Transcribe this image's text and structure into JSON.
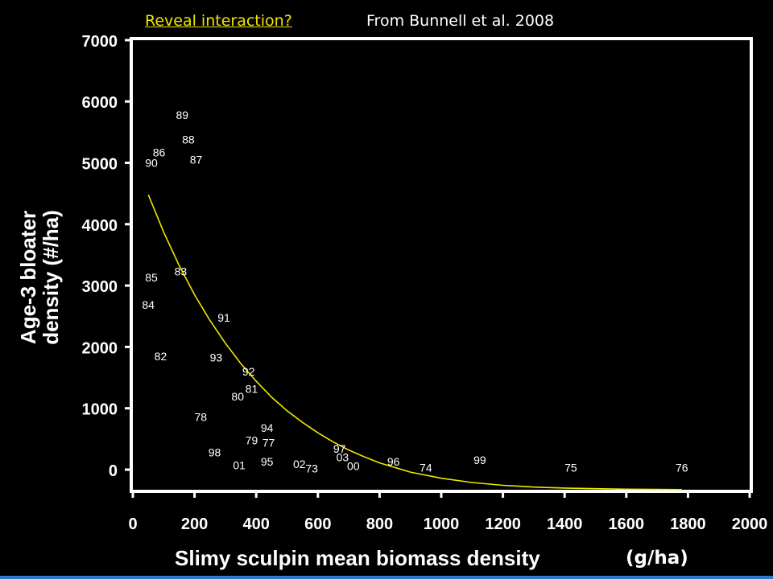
{
  "header": {
    "link_text": "Reveal interaction?",
    "citation": "From Bunnell et al. 2008"
  },
  "colors": {
    "background": "#000000",
    "axis": "#ffffff",
    "curve": "#f2e600",
    "link": "#f2e600",
    "accent_bar": "#2e79c9"
  },
  "chart_data": {
    "type": "scatter",
    "xlabel": "Slimy sculpin mean biomass density",
    "xlabel_unit": "(g/ha)",
    "ylabel_line1": "Age-3 bloater",
    "ylabel_line2": "density (#/ha)",
    "xlim": [
      0,
      2000
    ],
    "ylim": [
      -350,
      7000
    ],
    "x_ticks": [
      0,
      200,
      400,
      600,
      800,
      1000,
      1200,
      1400,
      1600,
      1800,
      2000
    ],
    "y_ticks": [
      0,
      1000,
      2000,
      3000,
      4000,
      5000,
      6000,
      7000
    ],
    "grid": false,
    "legend": "none",
    "points": [
      {
        "label": "89",
        "x": 160,
        "y": 5780
      },
      {
        "label": "88",
        "x": 180,
        "y": 5380
      },
      {
        "label": "86",
        "x": 85,
        "y": 5170
      },
      {
        "label": "90",
        "x": 60,
        "y": 5000
      },
      {
        "label": "87",
        "x": 205,
        "y": 5050
      },
      {
        "label": "85",
        "x": 60,
        "y": 3130
      },
      {
        "label": "83",
        "x": 155,
        "y": 3230
      },
      {
        "label": "84",
        "x": 50,
        "y": 2690
      },
      {
        "label": "91",
        "x": 295,
        "y": 2480
      },
      {
        "label": "82",
        "x": 90,
        "y": 1850
      },
      {
        "label": "93",
        "x": 270,
        "y": 1830
      },
      {
        "label": "92",
        "x": 375,
        "y": 1600
      },
      {
        "label": "81",
        "x": 385,
        "y": 1320
      },
      {
        "label": "80",
        "x": 340,
        "y": 1190
      },
      {
        "label": "78",
        "x": 220,
        "y": 860
      },
      {
        "label": "94",
        "x": 435,
        "y": 680
      },
      {
        "label": "79",
        "x": 385,
        "y": 480
      },
      {
        "label": "77",
        "x": 440,
        "y": 440
      },
      {
        "label": "98",
        "x": 265,
        "y": 280
      },
      {
        "label": "97",
        "x": 670,
        "y": 340
      },
      {
        "label": "03",
        "x": 680,
        "y": 200
      },
      {
        "label": "01",
        "x": 345,
        "y": 70
      },
      {
        "label": "95",
        "x": 435,
        "y": 130
      },
      {
        "label": "02",
        "x": 540,
        "y": 90
      },
      {
        "label": "73",
        "x": 580,
        "y": 20
      },
      {
        "label": "00",
        "x": 715,
        "y": 60
      },
      {
        "label": "96",
        "x": 845,
        "y": 130
      },
      {
        "label": "74",
        "x": 950,
        "y": 30
      },
      {
        "label": "99",
        "x": 1125,
        "y": 160
      },
      {
        "label": "75",
        "x": 1420,
        "y": 30
      },
      {
        "label": "76",
        "x": 1780,
        "y": 30
      }
    ],
    "fit_curve": {
      "x": [
        50,
        100,
        150,
        200,
        250,
        300,
        350,
        400,
        450,
        500,
        550,
        600,
        650,
        700,
        750,
        800,
        900,
        1000,
        1100,
        1200,
        1300,
        1400,
        1500,
        1600,
        1700,
        1780
      ],
      "y": [
        4480,
        3870,
        3330,
        2850,
        2430,
        2060,
        1730,
        1440,
        1180,
        960,
        770,
        600,
        450,
        320,
        210,
        110,
        -40,
        -140,
        -210,
        -255,
        -285,
        -300,
        -310,
        -318,
        -322,
        -325
      ]
    }
  }
}
